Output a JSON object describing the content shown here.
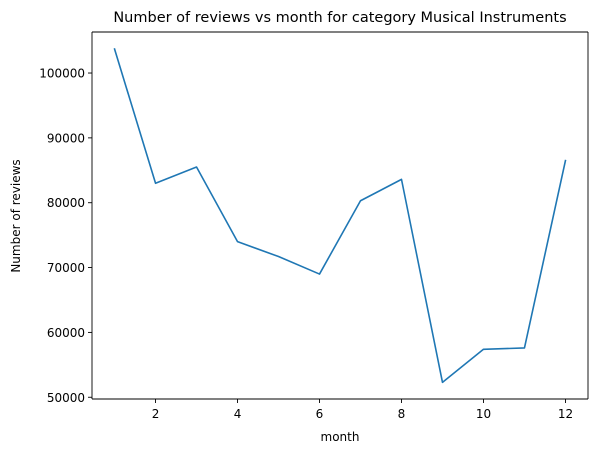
{
  "chart_data": {
    "type": "line",
    "title": "Number of reviews vs month for category Musical Instruments",
    "xlabel": "month",
    "ylabel": "Number of reviews",
    "x": [
      1,
      2,
      3,
      4,
      5,
      6,
      7,
      8,
      9,
      10,
      11,
      12
    ],
    "series": [
      {
        "values": [
          103700,
          83000,
          85500,
          74000,
          71700,
          69000,
          80300,
          83600,
          52300,
          57400,
          57600,
          86500
        ],
        "color": "#1f77b4"
      }
    ],
    "xticks": [
      2,
      4,
      6,
      8,
      10,
      12
    ],
    "yticks": [
      50000,
      60000,
      70000,
      80000,
      90000,
      100000
    ],
    "xlim": [
      0.45,
      12.55
    ],
    "ylim": [
      49731,
      106326
    ],
    "grid": false,
    "legend": "none"
  }
}
